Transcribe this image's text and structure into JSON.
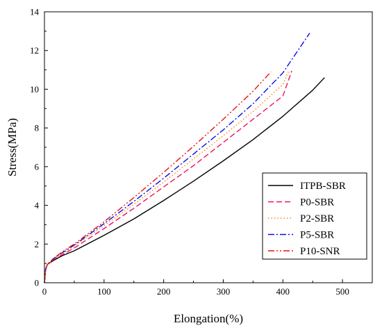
{
  "chart_data": {
    "type": "line",
    "xlabel": "Elongation(%)",
    "ylabel": "Stress(MPa)",
    "xlim": [
      0,
      550
    ],
    "ylim": [
      0,
      14
    ],
    "xticks": [
      0,
      100,
      200,
      300,
      400,
      500
    ],
    "yticks": [
      0,
      2,
      4,
      6,
      8,
      10,
      12,
      14
    ],
    "grid": false,
    "legend_position": "bottom-right",
    "series": [
      {
        "name": "ITPB-SBR",
        "color": "#000000",
        "dash": "solid",
        "x": [
          0,
          2,
          5,
          15,
          30,
          50,
          100,
          150,
          200,
          250,
          300,
          350,
          400,
          450,
          470
        ],
        "y": [
          0,
          0.7,
          0.95,
          1.15,
          1.4,
          1.65,
          2.45,
          3.3,
          4.25,
          5.25,
          6.3,
          7.4,
          8.6,
          9.95,
          10.6
        ]
      },
      {
        "name": "P0-SBR",
        "color": "#f0115a",
        "dash": "dashed",
        "x": [
          0,
          2,
          5,
          15,
          30,
          50,
          100,
          150,
          200,
          250,
          300,
          350,
          400,
          415
        ],
        "y": [
          0,
          0.7,
          0.95,
          1.2,
          1.45,
          1.8,
          2.8,
          3.85,
          4.95,
          6.05,
          7.25,
          8.45,
          9.65,
          10.95
        ]
      },
      {
        "name": "P2-SBR",
        "color": "#f58a00",
        "dash": "dotted",
        "x": [
          0,
          2,
          5,
          15,
          30,
          50,
          100,
          150,
          200,
          250,
          300,
          350,
          400,
          410
        ],
        "y": [
          0,
          0.7,
          0.95,
          1.2,
          1.5,
          1.9,
          2.95,
          4.05,
          5.2,
          6.4,
          7.6,
          8.85,
          10.25,
          10.95
        ]
      },
      {
        "name": "P5-SBR",
        "color": "#0a0af0",
        "dash": "dash-dot",
        "x": [
          0,
          2,
          5,
          15,
          30,
          50,
          100,
          150,
          200,
          250,
          300,
          350,
          400,
          445
        ],
        "y": [
          0,
          0.7,
          0.95,
          1.25,
          1.55,
          1.95,
          3.05,
          4.2,
          5.4,
          6.65,
          7.9,
          9.25,
          10.85,
          12.9
        ]
      },
      {
        "name": "P10-SNR",
        "color": "#e8140a",
        "dash": "dash-dot-dot",
        "x": [
          0,
          2,
          5,
          15,
          30,
          50,
          100,
          150,
          200,
          250,
          300,
          350,
          380
        ],
        "y": [
          0,
          0.7,
          0.95,
          1.25,
          1.6,
          2.0,
          3.15,
          4.4,
          5.7,
          7.05,
          8.45,
          9.9,
          10.9
        ]
      }
    ]
  }
}
